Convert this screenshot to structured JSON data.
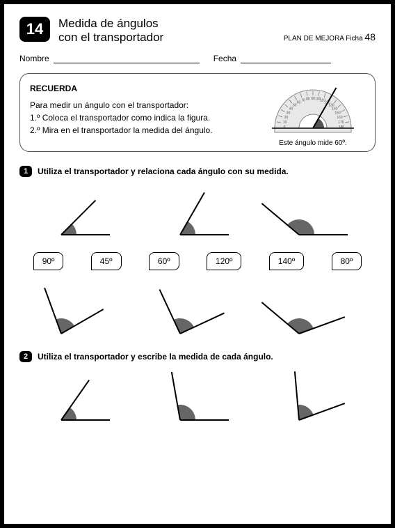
{
  "header": {
    "number": "14",
    "title_line1": "Medida de ángulos",
    "title_line2": "con el transportador",
    "plan_prefix": "PLAN DE MEJORA  Ficha",
    "plan_number": "48"
  },
  "fields": {
    "nombre_label": "Nombre",
    "fecha_label": "Fecha"
  },
  "recuerda": {
    "title": "RECUERDA",
    "intro": "Para medir un ángulo con el transportador:",
    "step1": "1.º  Coloca el transportador como indica la figura.",
    "step2": "2.º  Mira en el transportador la medida del ángulo.",
    "caption": "Este ángulo mide 60º.",
    "protractor": {
      "outer_color": "#888888",
      "fill": "#e8e8e8",
      "needle_color": "#000000",
      "angle_deg": 60,
      "ticks": [
        "0",
        "10",
        "20",
        "30",
        "40",
        "50",
        "60",
        "70",
        "80",
        "90",
        "100",
        "110",
        "120",
        "130",
        "140",
        "150",
        "160",
        "170",
        "180"
      ]
    }
  },
  "ex1": {
    "number": "1",
    "text": "Utiliza el transportador y relaciona cada ángulo con su medida.",
    "row1_angles": [
      {
        "angle": 45,
        "rotation": 0,
        "wedge_color": "#666666"
      },
      {
        "angle": 60,
        "rotation": 0,
        "wedge_color": "#666666"
      },
      {
        "angle": 140,
        "rotation": 0,
        "wedge_color": "#666666"
      }
    ],
    "labels": [
      "90º",
      "45º",
      "60º",
      "120º",
      "140º",
      "80º"
    ],
    "row2_angles": [
      {
        "angle": 80,
        "rotation": -30,
        "wedge_color": "#666666"
      },
      {
        "angle": 90,
        "rotation": -25,
        "wedge_color": "#666666"
      },
      {
        "angle": 120,
        "rotation": -20,
        "wedge_color": "#666666"
      }
    ]
  },
  "ex2": {
    "number": "2",
    "text": "Utiliza el transportador y escribe la medida de cada ángulo.",
    "angles": [
      {
        "angle": 55,
        "rotation": 0,
        "wedge_color": "#666666"
      },
      {
        "angle": 100,
        "rotation": 0,
        "wedge_color": "#666666"
      },
      {
        "angle": 75,
        "rotation": -20,
        "wedge_color": "#666666"
      }
    ]
  },
  "style": {
    "stroke": "#000000",
    "stroke_width": 2,
    "wedge_radius": 22,
    "ray_length": 70
  }
}
